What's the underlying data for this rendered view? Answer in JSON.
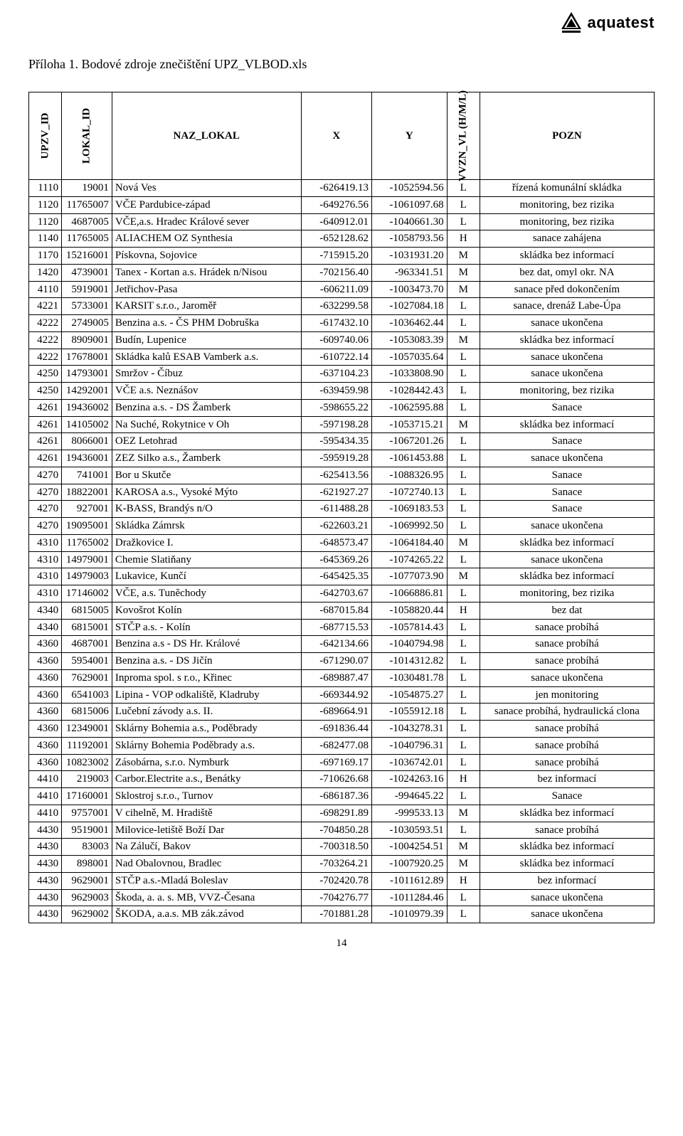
{
  "logo": {
    "text": "aquatest"
  },
  "title": "Příloha 1. Bodové zdroje znečištění  UPZ_VLBOD.xls",
  "columns": [
    "UPZV_ID",
    "LOKAL_ID",
    "NAZ_LOKAL",
    "X",
    "Y",
    "VVZN_VL (H/M/L)",
    "POZN"
  ],
  "pageNumber": "14",
  "rows": [
    [
      "1110",
      "19001",
      "Nová Ves",
      "-626419.13",
      "-1052594.56",
      "L",
      "řízená komunální skládka"
    ],
    [
      "1120",
      "11765007",
      "VČE Pardubice-západ",
      "-649276.56",
      "-1061097.68",
      "L",
      "monitoring, bez rizika"
    ],
    [
      "1120",
      "4687005",
      "VČE,a.s. Hradec Králové sever",
      "-640912.01",
      "-1040661.30",
      "L",
      "monitoring, bez rizika"
    ],
    [
      "1140",
      "11765005",
      "ALIACHEM OZ Synthesia",
      "-652128.62",
      "-1058793.56",
      "H",
      "sanace zahájena"
    ],
    [
      "1170",
      "15216001",
      "Pískovna, Sojovice",
      "-715915.20",
      "-1031931.20",
      "M",
      "skládka bez informací"
    ],
    [
      "1420",
      "4739001",
      "Tanex - Kortan a.s. Hrádek n/Nisou",
      "-702156.40",
      "-963341.51",
      "M",
      "bez dat, omyl okr. NA"
    ],
    [
      "4110",
      "5919001",
      "Jetřichov-Pasa",
      "-606211.09",
      "-1003473.70",
      "M",
      "sanace před dokončením"
    ],
    [
      "4221",
      "5733001",
      "KARSIT s.r.o., Jaroměř",
      "-632299.58",
      "-1027084.18",
      "L",
      "sanace, drenáž Labe-Úpa"
    ],
    [
      "4222",
      "2749005",
      "Benzina a.s. - ČS PHM Dobruška",
      "-617432.10",
      "-1036462.44",
      "L",
      "sanace ukončena"
    ],
    [
      "4222",
      "8909001",
      "Budín, Lupenice",
      "-609740.06",
      "-1053083.39",
      "M",
      "skládka bez informací"
    ],
    [
      "4222",
      "17678001",
      "Skládka kalů ESAB Vamberk a.s.",
      "-610722.14",
      "-1057035.64",
      "L",
      "sanace ukončena"
    ],
    [
      "4250",
      "14793001",
      "Smržov - Číbuz",
      "-637104.23",
      "-1033808.90",
      "L",
      "sanace ukončena"
    ],
    [
      "4250",
      "14292001",
      "VČE a.s. Neznášov",
      "-639459.98",
      "-1028442.43",
      "L",
      "monitoring, bez rizika"
    ],
    [
      "4261",
      "19436002",
      "Benzina a.s. - DS Žamberk",
      "-598655.22",
      "-1062595.88",
      "L",
      "Sanace"
    ],
    [
      "4261",
      "14105002",
      "Na Suché, Rokytnice v Oh",
      "-597198.28",
      "-1053715.21",
      "M",
      "skládka bez informací"
    ],
    [
      "4261",
      "8066001",
      "OEZ Letohrad",
      "-595434.35",
      "-1067201.26",
      "L",
      "Sanace"
    ],
    [
      "4261",
      "19436001",
      "ZEZ Silko a.s., Žamberk",
      "-595919.28",
      "-1061453.88",
      "L",
      "sanace ukončena"
    ],
    [
      "4270",
      "741001",
      "Bor u Skutče",
      "-625413.56",
      "-1088326.95",
      "L",
      "Sanace"
    ],
    [
      "4270",
      "18822001",
      "KAROSA a.s., Vysoké Mýto",
      "-621927.27",
      "-1072740.13",
      "L",
      "Sanace"
    ],
    [
      "4270",
      "927001",
      "K-BASS, Brandýs n/O",
      "-611488.28",
      "-1069183.53",
      "L",
      "Sanace"
    ],
    [
      "4270",
      "19095001",
      "Skládka Zámrsk",
      "-622603.21",
      "-1069992.50",
      "L",
      "sanace ukončena"
    ],
    [
      "4310",
      "11765002",
      "Dražkovice I.",
      "-648573.47",
      "-1064184.40",
      "M",
      "skládka bez informací"
    ],
    [
      "4310",
      "14979001",
      "Chemie Slatiňany",
      "-645369.26",
      "-1074265.22",
      "L",
      "sanace ukončena"
    ],
    [
      "4310",
      "14979003",
      "Lukavice, Kunčí",
      "-645425.35",
      "-1077073.90",
      "M",
      "skládka bez informací"
    ],
    [
      "4310",
      "17146002",
      "VČE, a.s. Tuněchody",
      "-642703.67",
      "-1066886.81",
      "L",
      "monitoring, bez rizika"
    ],
    [
      "4340",
      "6815005",
      "Kovošrot Kolín",
      "-687015.84",
      "-1058820.44",
      "H",
      "bez dat"
    ],
    [
      "4340",
      "6815001",
      "STČP a.s. - Kolín",
      "-687715.53",
      "-1057814.43",
      "L",
      "sanace probíhá"
    ],
    [
      "4360",
      "4687001",
      "Benzina a.s - DS Hr. Králové",
      "-642134.66",
      "-1040794.98",
      "L",
      "sanace probíhá"
    ],
    [
      "4360",
      "5954001",
      "Benzina a.s. - DS Jičín",
      "-671290.07",
      "-1014312.82",
      "L",
      "sanace probíhá"
    ],
    [
      "4360",
      "7629001",
      "Inproma spol. s r.o., Křinec",
      "-689887.47",
      "-1030481.78",
      "L",
      "sanace ukončena"
    ],
    [
      "4360",
      "6541003",
      "Lipina - VOP odkaliště, Kladruby",
      "-669344.92",
      "-1054875.27",
      "L",
      "jen monitoring"
    ],
    [
      "4360",
      "6815006",
      "Lučební závody a.s. II.",
      "-689664.91",
      "-1055912.18",
      "L",
      "sanace probíhá, hydraulická clona"
    ],
    [
      "4360",
      "12349001",
      "Sklárny Bohemia a.s., Poděbrady",
      "-691836.44",
      "-1043278.31",
      "L",
      "sanace probíhá"
    ],
    [
      "4360",
      "11192001",
      "Sklárny Bohemia Poděbrady a.s.",
      "-682477.08",
      "-1040796.31",
      "L",
      "sanace probíhá"
    ],
    [
      "4360",
      "10823002",
      "Zásobárna, s.r.o. Nymburk",
      "-697169.17",
      "-1036742.01",
      "L",
      "sanace probíhá"
    ],
    [
      "4410",
      "219003",
      "Carbor.Electrite a.s., Benátky",
      "-710626.68",
      "-1024263.16",
      "H",
      "bez informací"
    ],
    [
      "4410",
      "17160001",
      "Sklostroj s.r.o., Turnov",
      "-686187.36",
      "-994645.22",
      "L",
      "Sanace"
    ],
    [
      "4410",
      "9757001",
      "V cihelně, M. Hradiště",
      "-698291.89",
      "-999533.13",
      "M",
      "skládka bez informací"
    ],
    [
      "4430",
      "9519001",
      "Milovice-letiště Boží Dar",
      "-704850.28",
      "-1030593.51",
      "L",
      "sanace probíhá"
    ],
    [
      "4430",
      "83003",
      "Na Zálučí, Bakov",
      "-700318.50",
      "-1004254.51",
      "M",
      "skládka bez informací"
    ],
    [
      "4430",
      "898001",
      "Nad Obalovnou, Bradlec",
      "-703264.21",
      "-1007920.25",
      "M",
      "skládka bez informací"
    ],
    [
      "4430",
      "9629001",
      "STČP a.s.-Mladá Boleslav",
      "-702420.78",
      "-1011612.89",
      "H",
      "bez informací"
    ],
    [
      "4430",
      "9629003",
      "Škoda, a. a. s. MB, VVZ-Česana",
      "-704276.77",
      "-1011284.46",
      "L",
      "sanace ukončena"
    ],
    [
      "4430",
      "9629002",
      "ŠKODA, a.a.s. MB zák.závod",
      "-701881.28",
      "-1010979.39",
      "L",
      "sanace ukončena"
    ]
  ]
}
